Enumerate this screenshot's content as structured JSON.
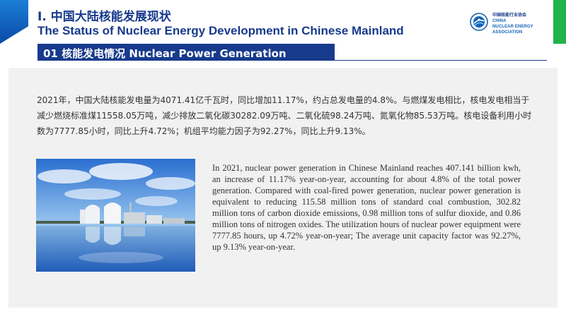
{
  "header": {
    "title_cn": "I. 中国大陆核能发展现状",
    "title_en": "The Status of Nuclear Energy Development in Chinese Mainland"
  },
  "logo": {
    "name_cn": "中国核能行业协会",
    "name_en_line1": "CHINA",
    "name_en_line2": "NUCLEAR ENERGY",
    "name_en_line3": "ASSOCIATION",
    "icon": "association-emblem-icon"
  },
  "section": {
    "title": "01 核能发电情况 Nuclear Power Generation"
  },
  "body": {
    "paragraph_cn": "2021年，中国大陆核能发电量为4071.41亿千瓦时，同比增加11.17%，约占总发电量的4.8%。与燃煤发电相比，核电发电相当于减少燃烧标准煤11558.05万吨，减少排放二氧化碳30282.09万吨、二氧化硫98.24万吨、氮氧化物85.53万吨。核电设备利用小时数为7777.85小时，同比上升4.72%；机组平均能力因子为92.27%，同比上升9.13%。",
    "paragraph_en": "In 2021, nuclear power generation in Chinese Mainland reaches 407.141 billion kwh, an increase of 11.17% year-on-year, accounting for about 4.8% of the total power generation. Compared with coal-fired power generation, nuclear power generation is equivalent to reducing 115.58 million tons of standard coal combustion, 302.82 million tons of carbon dioxide emissions, 0.98 million tons of sulfur dioxide, and 0.86 million tons of nitrogen oxides. The utilization hours of nuclear power equipment were 7777.85 hours, up 4.72% year-on-year; The average unit capacity factor was 92.27%, up 9.13% year-on-year."
  },
  "colors": {
    "brand_blue": "#173a8c",
    "accent_blue": "#1b7fd6",
    "accent_green": "#1fb34a",
    "panel_gray": "#f1f1f1"
  }
}
